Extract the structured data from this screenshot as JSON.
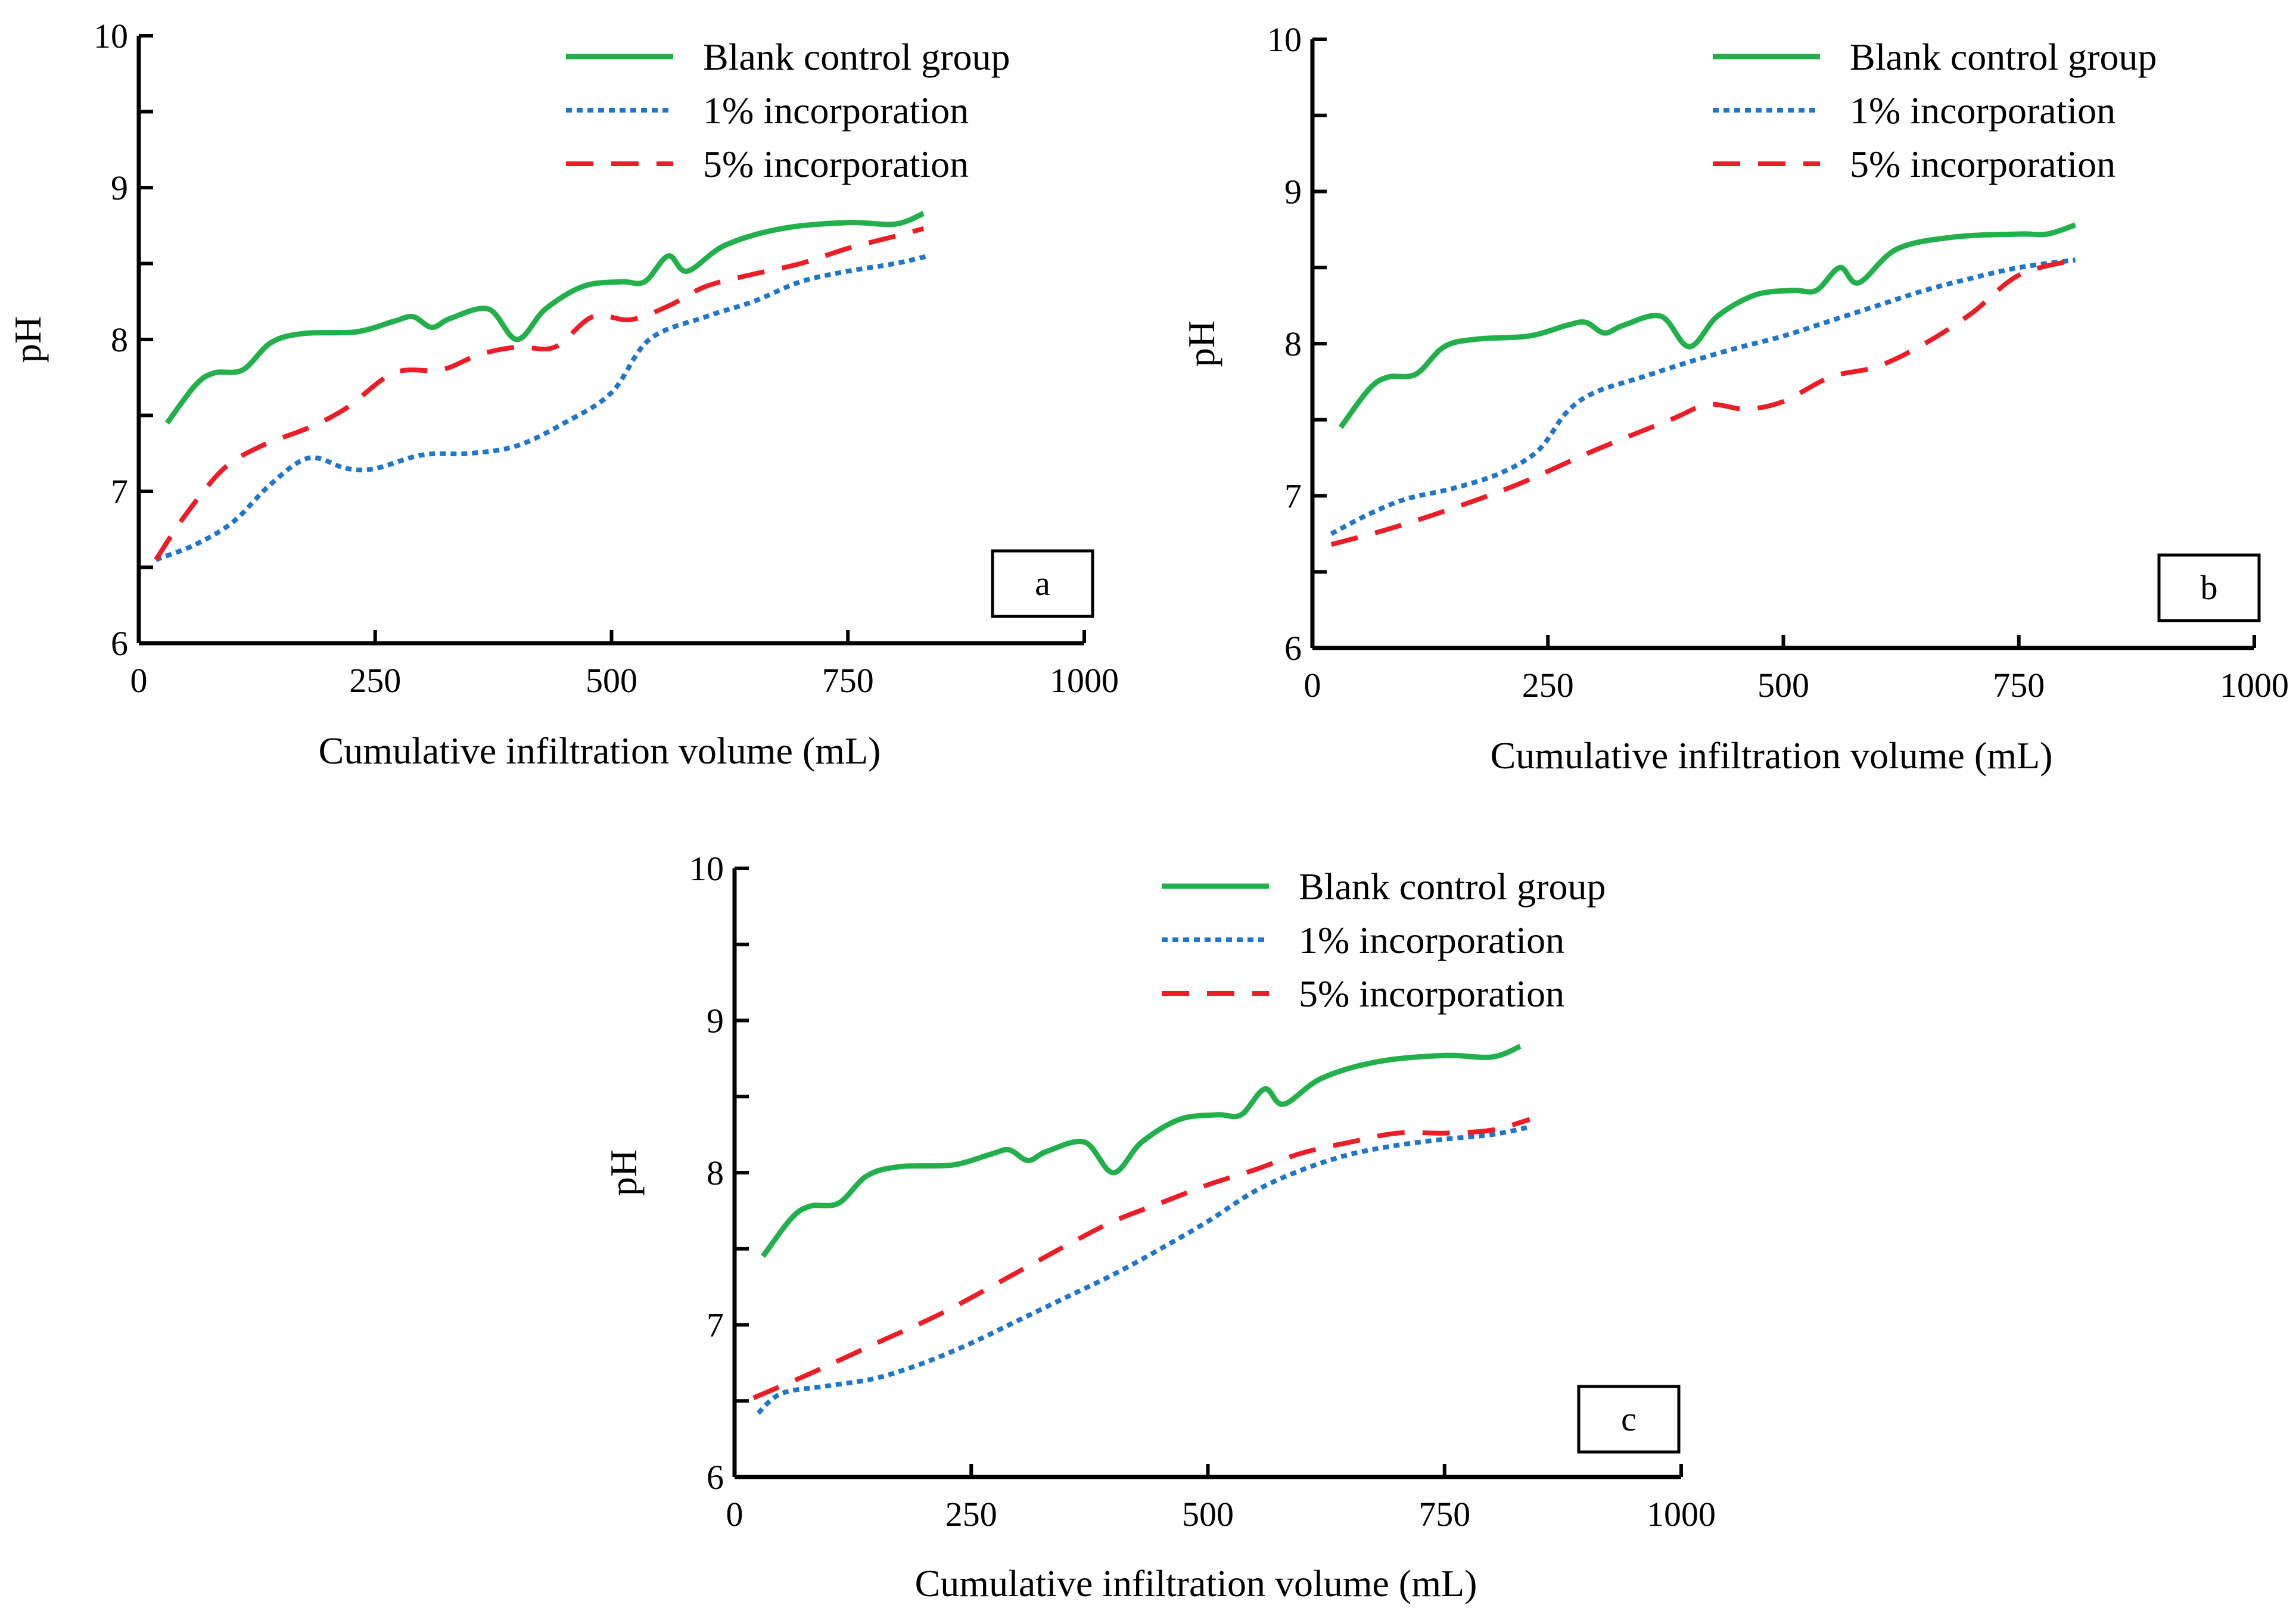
{
  "figure": {
    "series_style": {
      "blank": {
        "color": "#22b04b",
        "dash": "none"
      },
      "one": {
        "color": "#1f77c8",
        "dash": "dotted"
      },
      "five": {
        "color": "#ee1c25",
        "dash": "dashed"
      }
    }
  },
  "chart_data": [
    {
      "type": "line",
      "panel_label": "a",
      "xlabel": "Cumulative infiltration volume (mL)",
      "ylabel": "pH",
      "xlim": [
        0,
        1000
      ],
      "ylim": [
        6,
        10
      ],
      "xticks": [
        "0",
        "250",
        "500",
        "750",
        "1000"
      ],
      "yticks": [
        "6",
        "7",
        "8",
        "9",
        "10"
      ],
      "legend_position": "top-right",
      "series": [
        {
          "key": "blank",
          "name": "Blank control group",
          "x": [
            30,
            60,
            80,
            110,
            140,
            175,
            230,
            270,
            290,
            310,
            330,
            370,
            400,
            430,
            470,
            510,
            535,
            560,
            580,
            620,
            680,
            750,
            800,
            830
          ],
          "y": [
            7.45,
            7.7,
            7.78,
            7.8,
            7.98,
            8.04,
            8.05,
            8.12,
            8.15,
            8.08,
            8.14,
            8.2,
            8.0,
            8.2,
            8.35,
            8.38,
            8.38,
            8.55,
            8.45,
            8.62,
            8.73,
            8.77,
            8.76,
            8.83
          ]
        },
        {
          "key": "one",
          "name": "1% incorporation",
          "x": [
            18,
            60,
            100,
            140,
            180,
            220,
            250,
            300,
            350,
            400,
            450,
            500,
            540,
            600,
            650,
            700,
            750,
            800,
            835
          ],
          "y": [
            6.55,
            6.65,
            6.8,
            7.05,
            7.22,
            7.15,
            7.15,
            7.24,
            7.25,
            7.3,
            7.45,
            7.65,
            8.0,
            8.15,
            8.25,
            8.38,
            8.45,
            8.5,
            8.55
          ]
        },
        {
          "key": "five",
          "name": "5% incorporation",
          "x": [
            18,
            50,
            90,
            130,
            180,
            220,
            270,
            320,
            360,
            400,
            440,
            480,
            520,
            560,
            600,
            650,
            700,
            750,
            800,
            830
          ],
          "y": [
            6.55,
            6.85,
            7.15,
            7.3,
            7.42,
            7.55,
            7.78,
            7.8,
            7.9,
            7.95,
            7.95,
            8.15,
            8.13,
            8.22,
            8.35,
            8.43,
            8.5,
            8.6,
            8.68,
            8.73
          ]
        }
      ]
    },
    {
      "type": "line",
      "panel_label": "b",
      "xlabel": "Cumulative infiltration volume (mL)",
      "ylabel": "pH",
      "xlim": [
        0,
        1000
      ],
      "ylim": [
        6,
        10
      ],
      "xticks": [
        "0",
        "250",
        "500",
        "750",
        "1000"
      ],
      "yticks": [
        "6",
        "7",
        "8",
        "9",
        "10"
      ],
      "legend_position": "top-right",
      "series": [
        {
          "key": "blank",
          "name": "Blank control group",
          "x": [
            30,
            60,
            80,
            110,
            140,
            175,
            230,
            270,
            290,
            310,
            330,
            370,
            400,
            430,
            470,
            510,
            535,
            560,
            580,
            620,
            680,
            750,
            780,
            810
          ],
          "y": [
            7.45,
            7.7,
            7.78,
            7.8,
            7.98,
            8.03,
            8.05,
            8.12,
            8.14,
            8.07,
            8.12,
            8.18,
            7.98,
            8.18,
            8.32,
            8.35,
            8.35,
            8.5,
            8.4,
            8.62,
            8.7,
            8.72,
            8.72,
            8.78
          ]
        },
        {
          "key": "one",
          "name": "1% incorporation",
          "x": [
            20,
            60,
            100,
            150,
            200,
            240,
            270,
            300,
            350,
            400,
            450,
            500,
            550,
            600,
            650,
            700,
            750,
            810
          ],
          "y": [
            6.75,
            6.88,
            6.98,
            7.05,
            7.15,
            7.3,
            7.55,
            7.68,
            7.78,
            7.88,
            7.97,
            8.05,
            8.15,
            8.25,
            8.35,
            8.43,
            8.5,
            8.55
          ]
        },
        {
          "key": "five",
          "name": "5% incorporation",
          "x": [
            20,
            80,
            150,
            220,
            300,
            380,
            420,
            460,
            500,
            550,
            600,
            650,
            700,
            750,
            810
          ],
          "y": [
            6.68,
            6.78,
            6.92,
            7.08,
            7.3,
            7.5,
            7.6,
            7.57,
            7.62,
            7.78,
            7.85,
            8.0,
            8.2,
            8.45,
            8.55
          ]
        }
      ]
    },
    {
      "type": "line",
      "panel_label": "c",
      "xlabel": "Cumulative infiltration volume (mL)",
      "ylabel": "pH",
      "xlim": [
        0,
        1000
      ],
      "ylim": [
        6,
        10
      ],
      "xticks": [
        "0",
        "250",
        "500",
        "750",
        "1000"
      ],
      "yticks": [
        "6",
        "7",
        "8",
        "9",
        "10"
      ],
      "legend_position": "top-right",
      "series": [
        {
          "key": "blank",
          "name": "Blank control group",
          "x": [
            30,
            60,
            80,
            110,
            140,
            175,
            230,
            270,
            290,
            310,
            330,
            370,
            400,
            430,
            470,
            510,
            535,
            560,
            580,
            620,
            680,
            750,
            800,
            830
          ],
          "y": [
            7.45,
            7.7,
            7.78,
            7.8,
            7.98,
            8.04,
            8.05,
            8.12,
            8.15,
            8.08,
            8.14,
            8.2,
            8.0,
            8.2,
            8.35,
            8.38,
            8.38,
            8.55,
            8.45,
            8.62,
            8.73,
            8.77,
            8.76,
            8.83
          ]
        },
        {
          "key": "one",
          "name": "1% incorporation",
          "x": [
            25,
            50,
            100,
            150,
            200,
            250,
            300,
            350,
            400,
            450,
            500,
            550,
            600,
            650,
            700,
            750,
            800,
            840
          ],
          "y": [
            6.42,
            6.55,
            6.6,
            6.65,
            6.75,
            6.88,
            7.03,
            7.18,
            7.33,
            7.5,
            7.68,
            7.88,
            8.02,
            8.12,
            8.18,
            8.22,
            8.25,
            8.3
          ]
        },
        {
          "key": "five",
          "name": "5% incorporation",
          "x": [
            20,
            80,
            150,
            220,
            300,
            350,
            400,
            450,
            500,
            550,
            600,
            650,
            700,
            750,
            800,
            840
          ],
          "y": [
            6.52,
            6.68,
            6.88,
            7.08,
            7.35,
            7.52,
            7.68,
            7.8,
            7.92,
            8.02,
            8.13,
            8.2,
            8.26,
            8.26,
            8.28,
            8.35
          ]
        }
      ]
    }
  ]
}
